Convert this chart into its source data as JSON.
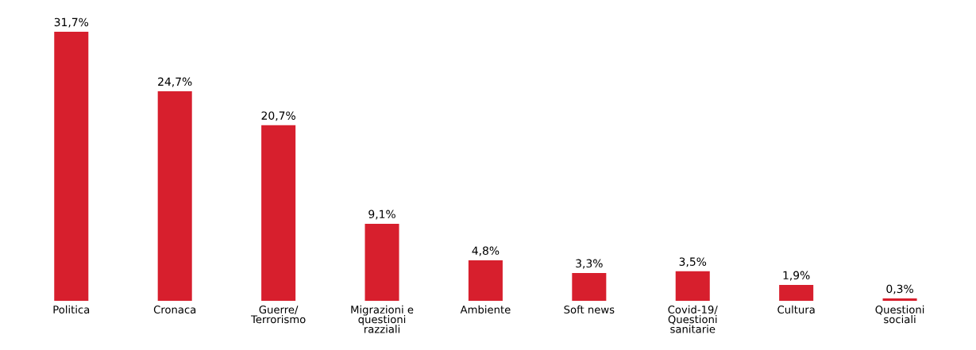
{
  "chart_data": {
    "type": "bar",
    "categories": [
      "Politica",
      "Cronaca",
      "Guerre/\nTerrorismo",
      "Migrazioni e\nquestioni\nrazziali",
      "Ambiente",
      "Soft news",
      "Covid-19/\nQuestioni\nsanitarie",
      "Cultura",
      "Questioni\nsociali"
    ],
    "values": [
      31.7,
      24.7,
      20.7,
      9.1,
      4.8,
      3.3,
      3.5,
      1.9,
      0.3
    ],
    "value_labels": [
      "31,7%",
      "24,7%",
      "20,7%",
      "9,1%",
      "4,8%",
      "3,3%",
      "3,5%",
      "1,9%",
      "0,3%"
    ],
    "color": "#d71f2d"
  }
}
